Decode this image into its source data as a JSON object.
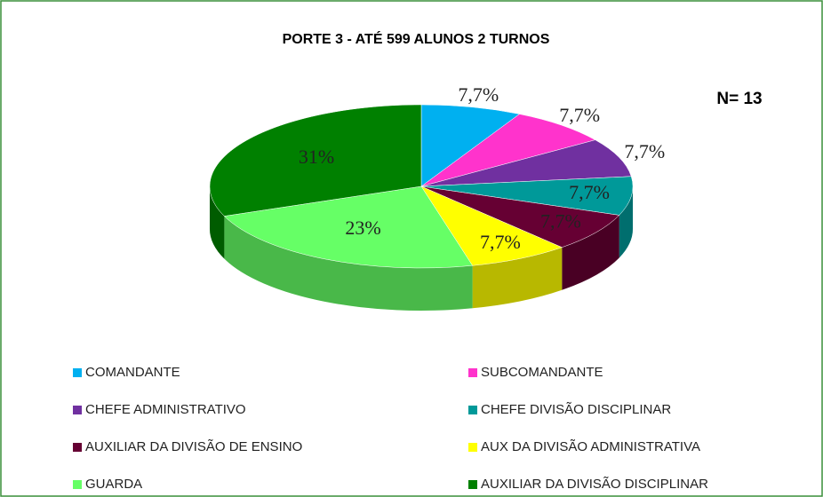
{
  "chart_data": {
    "type": "pie",
    "title": "PORTE 3 - ATÉ 599 ALUNOS 2 TURNOS",
    "annotation": "N= 13",
    "categories": [
      "COMANDANTE",
      "SUBCOMANDANTE",
      "CHEFE ADMINISTRATIVO",
      "CHEFE DIVISÃO DISCIPLINAR",
      "AUXILIAR DA DIVISÃO DE ENSINO",
      "AUX DA DIVISÃO ADMINISTRATIVA",
      "GUARDA",
      "AUXILIAR DA DIVISÃO DISCIPLINAR"
    ],
    "values": [
      7.7,
      7.7,
      7.7,
      7.7,
      7.7,
      7.7,
      23,
      31
    ],
    "value_labels": [
      "7,7%",
      "7,7%",
      "7,7%",
      "7,7%",
      "7,7%",
      "7,7%",
      "23%",
      "31%"
    ],
    "colors": [
      "#00b0f0",
      "#ff33cc",
      "#7030a0",
      "#009999",
      "#660033",
      "#ffff00",
      "#66ff66",
      "#008000"
    ],
    "legend": "bottom"
  }
}
